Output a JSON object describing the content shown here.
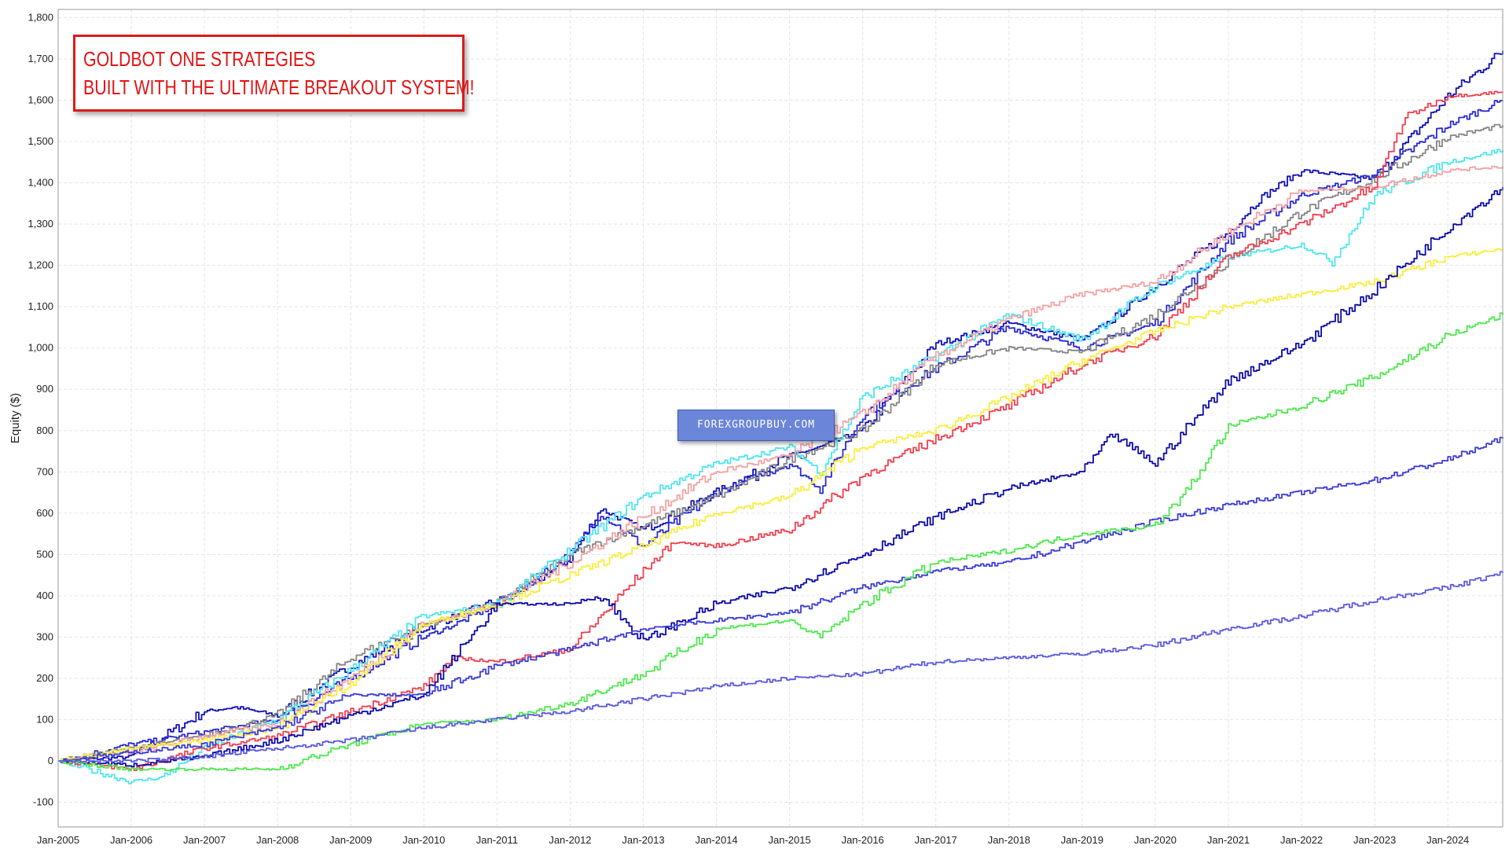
{
  "chart_data": {
    "type": "line",
    "title": "",
    "xlabel": "",
    "ylabel": "Equity ($)",
    "ylim": [
      -160,
      1820
    ],
    "y_ticks": [
      -100,
      0,
      100,
      200,
      300,
      400,
      500,
      600,
      700,
      800,
      900,
      1000,
      1100,
      1200,
      1300,
      1400,
      1500,
      1600,
      1700,
      1800
    ],
    "y_tick_labels": [
      "-100",
      "0",
      "100",
      "200",
      "300",
      "400",
      "500",
      "600",
      "700",
      "800",
      "900",
      "1,000",
      "1,100",
      "1,200",
      "1,300",
      "1,400",
      "1,500",
      "1,600",
      "1,700",
      "1,800"
    ],
    "x_tick_labels": [
      "Jan-2005",
      "Jan-2006",
      "Jan-2007",
      "Jan-2008",
      "Jan-2009",
      "Jan-2010",
      "Jan-2011",
      "Jan-2012",
      "Jan-2013",
      "Jan-2014",
      "Jan-2015",
      "Jan-2016",
      "Jan-2017",
      "Jan-2018",
      "Jan-2019",
      "Jan-2020",
      "Jan-2021",
      "Jan-2022",
      "Jan-2023",
      "Jan-2024"
    ],
    "x_range": [
      "2005-01",
      "2024-10"
    ],
    "grid": true,
    "legend": "none",
    "series": [
      {
        "color": "#1010b8",
        "x": [
          "2005-01",
          "2006-01",
          "2007-01",
          "2007-06",
          "2008-01",
          "2009-01",
          "2010-01",
          "2011-01",
          "2011-06",
          "2012-01",
          "2012-06",
          "2013-01",
          "2014-01",
          "2015-01",
          "2015-06",
          "2016-01",
          "2017-01",
          "2018-01",
          "2019-01",
          "2019-06",
          "2020-01",
          "2021-01",
          "2021-06",
          "2022-01",
          "2023-01",
          "2024-01",
          "2024-10"
        ],
        "values": [
          0,
          10,
          120,
          130,
          110,
          230,
          320,
          390,
          420,
          490,
          610,
          560,
          650,
          740,
          760,
          800,
          1010,
          1060,
          1020,
          1070,
          1150,
          1280,
          1360,
          1430,
          1410,
          1610,
          1720
        ]
      },
      {
        "color": "#2a2ad0",
        "x": [
          "2005-01",
          "2006-01",
          "2007-01",
          "2008-01",
          "2009-01",
          "2010-01",
          "2010-06",
          "2011-01",
          "2012-01",
          "2012-06",
          "2013-01",
          "2014-01",
          "2015-01",
          "2015-06",
          "2016-01",
          "2017-01",
          "2018-01",
          "2019-01",
          "2020-01",
          "2021-01",
          "2022-01",
          "2023-01",
          "2024-01",
          "2024-10"
        ],
        "values": [
          0,
          40,
          70,
          100,
          200,
          300,
          330,
          380,
          500,
          600,
          520,
          650,
          720,
          660,
          840,
          950,
          1050,
          1000,
          1060,
          1260,
          1370,
          1420,
          1540,
          1600
        ]
      },
      {
        "color": "#858585",
        "x": [
          "2005-01",
          "2006-01",
          "2007-01",
          "2008-01",
          "2009-01",
          "2010-01",
          "2011-01",
          "2012-01",
          "2013-01",
          "2014-01",
          "2015-01",
          "2016-01",
          "2017-01",
          "2018-01",
          "2019-01",
          "2020-01",
          "2021-01",
          "2022-01",
          "2023-01",
          "2024-01",
          "2024-10"
        ],
        "values": [
          0,
          30,
          60,
          110,
          250,
          330,
          380,
          500,
          570,
          640,
          730,
          800,
          960,
          1000,
          990,
          1080,
          1210,
          1330,
          1410,
          1510,
          1540
        ]
      },
      {
        "color": "#4fe6ef",
        "x": [
          "2005-01",
          "2006-01",
          "2006-06",
          "2007-01",
          "2008-01",
          "2009-01",
          "2010-01",
          "2011-01",
          "2012-01",
          "2013-01",
          "2014-01",
          "2015-01",
          "2015-06",
          "2016-01",
          "2017-01",
          "2018-01",
          "2019-01",
          "2020-01",
          "2021-01",
          "2022-01",
          "2022-06",
          "2023-01",
          "2024-01",
          "2024-10"
        ],
        "values": [
          0,
          -50,
          -40,
          30,
          100,
          220,
          350,
          380,
          510,
          640,
          720,
          760,
          700,
          880,
          980,
          1080,
          1020,
          1150,
          1220,
          1250,
          1210,
          1370,
          1450,
          1480
        ]
      },
      {
        "color": "#f4a2a2",
        "x": [
          "2005-01",
          "2006-01",
          "2007-01",
          "2008-01",
          "2009-01",
          "2010-01",
          "2011-01",
          "2012-01",
          "2013-01",
          "2014-01",
          "2015-01",
          "2016-01",
          "2017-01",
          "2018-01",
          "2019-01",
          "2020-01",
          "2021-01",
          "2022-01",
          "2023-01",
          "2024-01",
          "2024-10"
        ],
        "values": [
          0,
          20,
          60,
          90,
          200,
          330,
          380,
          480,
          590,
          700,
          740,
          840,
          980,
          1070,
          1130,
          1160,
          1280,
          1380,
          1390,
          1430,
          1440
        ]
      },
      {
        "color": "#f0404f",
        "x": [
          "2005-01",
          "2006-01",
          "2007-01",
          "2008-01",
          "2009-01",
          "2010-01",
          "2010-06",
          "2011-01",
          "2012-01",
          "2013-01",
          "2013-06",
          "2014-01",
          "2015-01",
          "2016-01",
          "2017-01",
          "2018-01",
          "2019-01",
          "2020-01",
          "2021-01",
          "2022-01",
          "2023-01",
          "2023-06",
          "2024-01",
          "2024-10"
        ],
        "values": [
          0,
          -20,
          30,
          60,
          120,
          180,
          250,
          240,
          270,
          460,
          530,
          520,
          560,
          690,
          780,
          860,
          960,
          1030,
          1220,
          1300,
          1390,
          1560,
          1610,
          1620
        ]
      },
      {
        "color": "#f8ee3c",
        "x": [
          "2005-01",
          "2006-01",
          "2007-01",
          "2008-01",
          "2009-01",
          "2010-01",
          "2011-01",
          "2012-01",
          "2013-01",
          "2014-01",
          "2015-01",
          "2016-01",
          "2017-01",
          "2018-01",
          "2019-01",
          "2020-01",
          "2021-01",
          "2022-01",
          "2023-01",
          "2024-01",
          "2024-10"
        ],
        "values": [
          0,
          30,
          50,
          80,
          190,
          330,
          380,
          450,
          520,
          600,
          640,
          760,
          800,
          880,
          970,
          1040,
          1100,
          1130,
          1160,
          1220,
          1240
        ]
      },
      {
        "color": "#0a0aa8",
        "x": [
          "2005-01",
          "2006-01",
          "2007-01",
          "2008-01",
          "2009-01",
          "2010-01",
          "2011-01",
          "2011-06",
          "2012-01",
          "2012-06",
          "2013-01",
          "2014-01",
          "2015-01",
          "2016-01",
          "2017-01",
          "2018-01",
          "2019-01",
          "2019-06",
          "2020-01",
          "2021-01",
          "2022-01",
          "2023-01",
          "2024-01",
          "2024-10"
        ],
        "values": [
          0,
          -10,
          10,
          50,
          110,
          160,
          380,
          380,
          380,
          400,
          290,
          380,
          420,
          500,
          590,
          660,
          700,
          790,
          720,
          920,
          1010,
          1140,
          1290,
          1390
        ]
      },
      {
        "color": "#3c3cd8",
        "x": [
          "2005-01",
          "2006-01",
          "2007-01",
          "2008-01",
          "2009-01",
          "2010-01",
          "2011-01",
          "2012-01",
          "2013-01",
          "2014-01",
          "2015-01",
          "2016-01",
          "2017-01",
          "2018-01",
          "2019-01",
          "2020-01",
          "2021-01",
          "2022-01",
          "2023-01",
          "2024-01",
          "2024-10"
        ],
        "values": [
          0,
          20,
          40,
          80,
          160,
          160,
          230,
          270,
          320,
          340,
          360,
          420,
          460,
          480,
          530,
          580,
          620,
          650,
          680,
          730,
          780
        ]
      },
      {
        "color": "#4fe84f",
        "x": [
          "2005-01",
          "2006-01",
          "2007-01",
          "2008-01",
          "2009-01",
          "2010-01",
          "2011-01",
          "2012-01",
          "2013-01",
          "2014-01",
          "2015-01",
          "2015-06",
          "2016-01",
          "2017-01",
          "2018-01",
          "2019-01",
          "2020-01",
          "2020-06",
          "2021-01",
          "2022-01",
          "2023-01",
          "2024-01",
          "2024-10"
        ],
        "values": [
          0,
          -20,
          -20,
          -20,
          40,
          90,
          100,
          140,
          210,
          320,
          340,
          300,
          380,
          480,
          510,
          550,
          570,
          650,
          810,
          860,
          930,
          1030,
          1080
        ]
      },
      {
        "color": "#5a5ae0",
        "x": [
          "2005-01",
          "2006-01",
          "2007-01",
          "2008-01",
          "2009-01",
          "2010-01",
          "2011-01",
          "2012-01",
          "2013-01",
          "2014-01",
          "2015-01",
          "2016-01",
          "2017-01",
          "2018-01",
          "2019-01",
          "2020-01",
          "2021-01",
          "2022-01",
          "2023-01",
          "2024-01",
          "2024-10"
        ],
        "values": [
          0,
          0,
          10,
          30,
          50,
          80,
          100,
          120,
          150,
          180,
          200,
          210,
          240,
          250,
          260,
          280,
          320,
          350,
          390,
          420,
          455
        ]
      }
    ],
    "annotation": [
      "GOLDBOT ONE STRATEGIES",
      "BUILT WITH THE ULTIMATE BREAKOUT SYSTEM!"
    ],
    "watermark": "FOREXGROUPBUY.COM"
  }
}
